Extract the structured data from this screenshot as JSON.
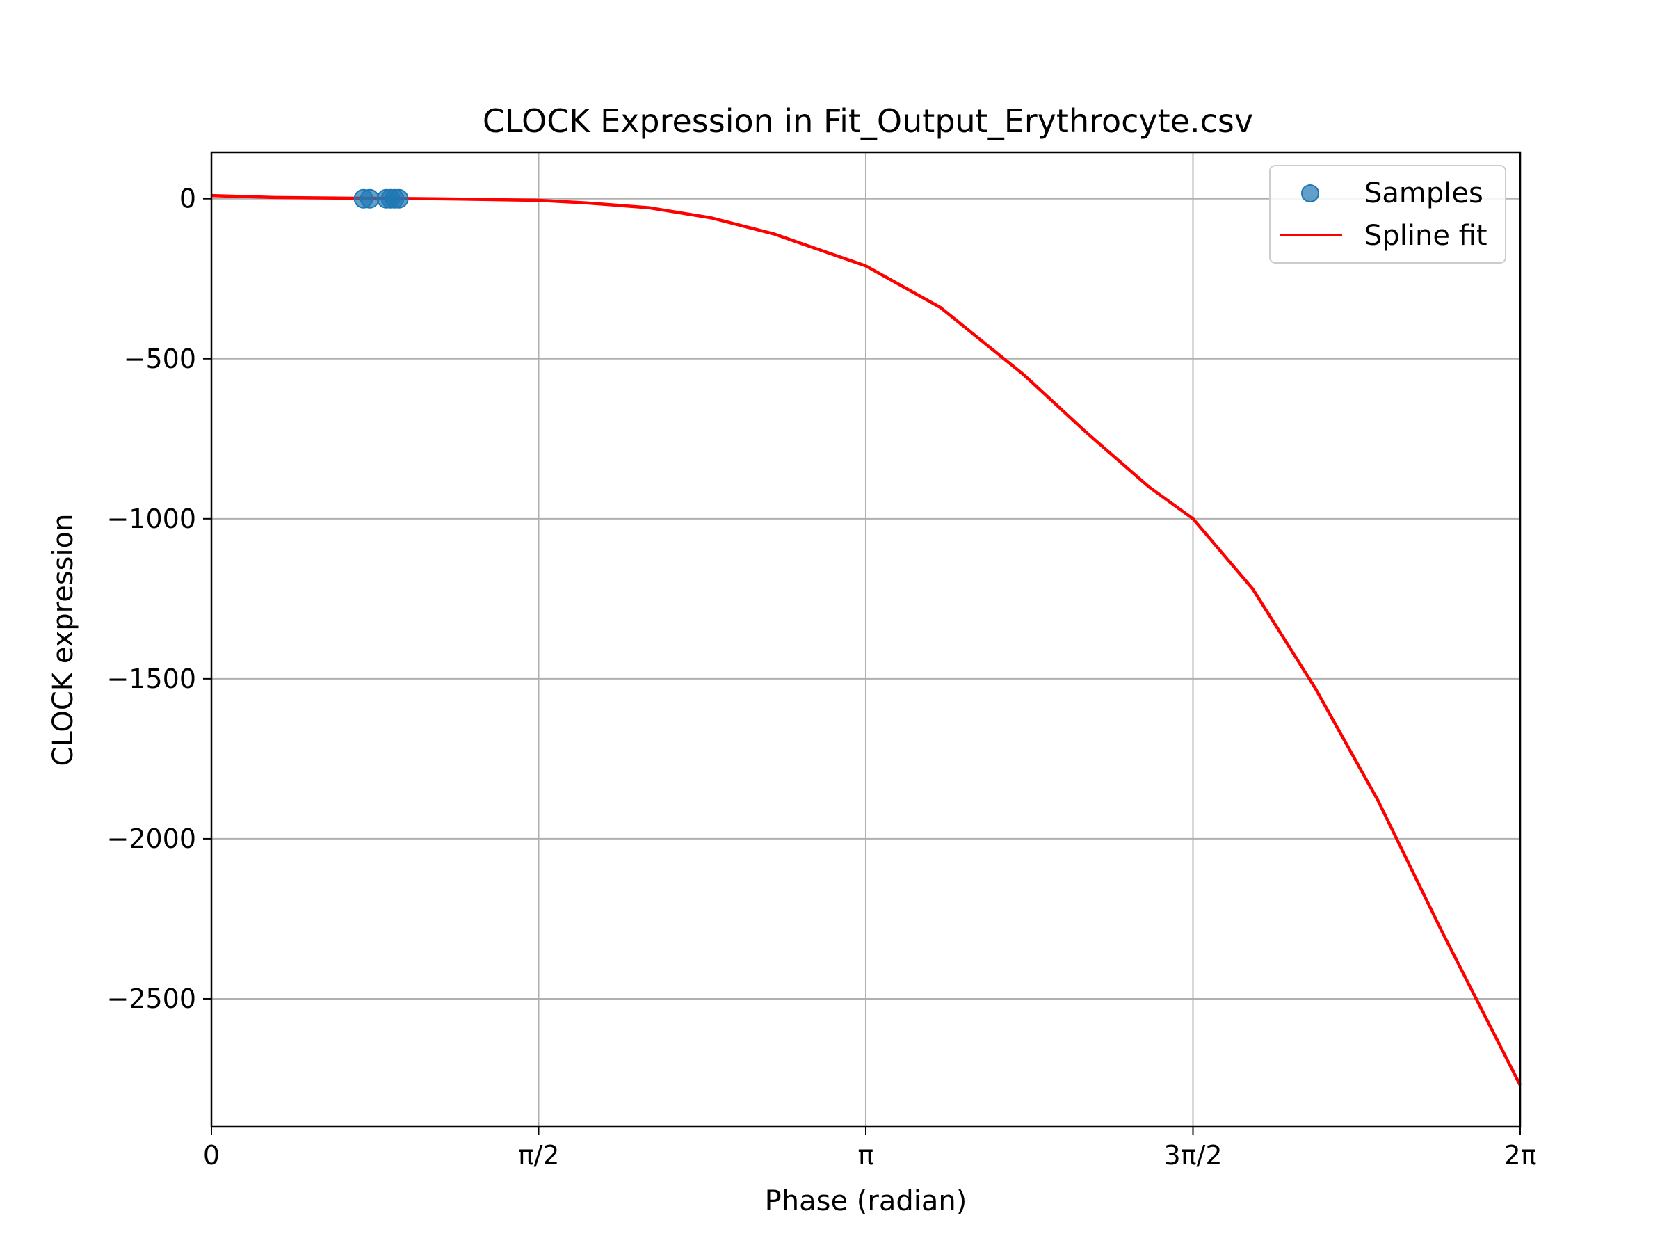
{
  "chart_data": {
    "type": "scatter",
    "title": "CLOCK Expression in Fit_Output_Erythrocyte.csv",
    "xlabel": "Phase (radian)",
    "ylabel": "CLOCK expression",
    "xlim": [
      0,
      6.2832
    ],
    "ylim": [
      -2900,
      145
    ],
    "x_ticks": [
      {
        "value": 0,
        "label": "0"
      },
      {
        "value": 1.5708,
        "label": "π/2"
      },
      {
        "value": 3.1416,
        "label": "π"
      },
      {
        "value": 4.7124,
        "label": "3π/2"
      },
      {
        "value": 6.2832,
        "label": "2π"
      }
    ],
    "y_ticks": [
      {
        "value": 0,
        "label": "0"
      },
      {
        "value": -500,
        "label": "−500"
      },
      {
        "value": -1000,
        "label": "−1000"
      },
      {
        "value": -1500,
        "label": "−1500"
      },
      {
        "value": -2000,
        "label": "−2000"
      },
      {
        "value": -2500,
        "label": "−2500"
      }
    ],
    "grid": true,
    "legend_position": "top-right",
    "series": [
      {
        "name": "Samples",
        "kind": "scatter",
        "color": "#1f77b4",
        "x": [
          0.73,
          0.76,
          0.84,
          0.86,
          0.88,
          0.9
        ],
        "y": [
          0,
          0,
          0,
          0,
          0,
          0
        ]
      },
      {
        "name": "Spline fit",
        "kind": "line",
        "color": "#ff0000",
        "x": [
          0,
          0.3,
          0.6,
          0.9,
          1.2,
          1.5708,
          1.8,
          2.1,
          2.4,
          2.7,
          3.1416,
          3.5,
          3.9,
          4.2,
          4.5,
          4.7124,
          5.0,
          5.3,
          5.6,
          5.9,
          6.2832
        ],
        "y": [
          10,
          4,
          2,
          1,
          -1,
          -5,
          -13,
          -28,
          -60,
          -110,
          -210,
          -340,
          -550,
          -730,
          -900,
          -1000,
          -1220,
          -1530,
          -1880,
          -2280,
          -2770
        ]
      }
    ]
  }
}
